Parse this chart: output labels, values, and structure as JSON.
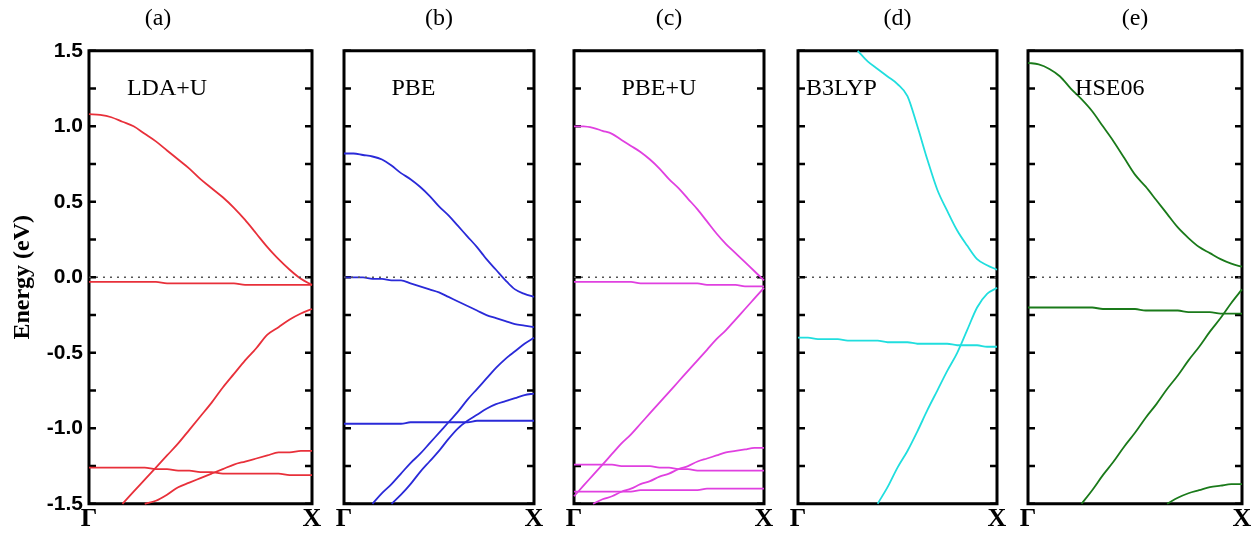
{
  "chart_data": [
    {
      "type": "line",
      "title": "(a)",
      "annotations": [
        "LDA+U"
      ],
      "ylabel": "Energy (eV)",
      "categories": [
        "Γ",
        null,
        null,
        null,
        null,
        null,
        null,
        null,
        null,
        null,
        null,
        null,
        null,
        null,
        null,
        null,
        null,
        null,
        null,
        null,
        "X"
      ],
      "ylim": [
        -1.5,
        1.5
      ],
      "yticks": [
        -1.5,
        {
          "value": -1.25,
          "label": null
        },
        {
          "value": -1,
          "label": "-1.0"
        },
        {
          "value": -0.75,
          "label": null
        },
        -0.5,
        {
          "value": -0.25,
          "label": null
        },
        {
          "value": 0,
          "label": "0.0"
        },
        {
          "value": 0.25,
          "label": null
        },
        0.5,
        {
          "value": 0.75,
          "label": null
        },
        {
          "value": 1,
          "label": "1.0"
        },
        {
          "value": 1.25,
          "label": null
        },
        1.5
      ],
      "ref_lines": [
        {
          "axis": "y",
          "value": 0,
          "color": "#555555",
          "line_style": "dotted"
        }
      ],
      "series": [
        {
          "color": "#e8303a",
          "values": [
            1.08,
            1.075,
            1.06,
            1.03,
            1.0,
            0.95,
            0.9,
            0.84,
            0.78,
            0.72,
            0.65,
            0.59,
            0.53,
            0.46,
            0.38,
            0.29,
            0.2,
            0.12,
            0.05,
            -0.01,
            -0.05
          ]
        },
        {
          "color": "#e8303a",
          "values": [
            -0.03,
            -0.03,
            -0.03,
            -0.03,
            -0.03,
            -0.03,
            -0.03,
            -0.04,
            -0.04,
            -0.04,
            -0.04,
            -0.04,
            -0.04,
            -0.04,
            -0.05,
            -0.05,
            -0.05,
            -0.05,
            -0.05,
            -0.05,
            -0.05
          ]
        },
        {
          "color": "#e8303a",
          "values": [
            null,
            null,
            null,
            -1.5,
            -1.42,
            -1.34,
            -1.26,
            -1.18,
            -1.1,
            -1.01,
            -0.92,
            -0.83,
            -0.73,
            -0.64,
            -0.55,
            -0.47,
            -0.38,
            -0.33,
            -0.28,
            -0.24,
            -0.21
          ]
        },
        {
          "color": "#e8303a",
          "values": [
            null,
            null,
            null,
            null,
            null,
            -1.5,
            -1.48,
            -1.44,
            -1.39,
            -1.36,
            -1.33,
            -1.3,
            -1.27,
            -1.24,
            -1.22,
            -1.2,
            -1.18,
            -1.16,
            -1.16,
            -1.15,
            -1.15
          ]
        },
        {
          "color": "#e8303a",
          "values": [
            -1.26,
            -1.26,
            -1.26,
            -1.26,
            -1.26,
            -1.26,
            -1.27,
            -1.27,
            -1.28,
            -1.28,
            -1.29,
            -1.29,
            -1.3,
            -1.3,
            -1.3,
            -1.3,
            -1.3,
            -1.3,
            -1.31,
            -1.31,
            -1.31
          ]
        }
      ]
    },
    {
      "type": "line",
      "title": "(b)",
      "annotations": [
        "PBE"
      ],
      "tick_labels": "x",
      "categories": [
        "Γ",
        null,
        null,
        null,
        null,
        null,
        null,
        null,
        null,
        null,
        null,
        null,
        null,
        null,
        null,
        null,
        null,
        null,
        null,
        null,
        "X"
      ],
      "ylim": [
        -1.5,
        1.5
      ],
      "yticks": [
        {
          "value": -1.5,
          "label": null
        },
        {
          "value": -1.25,
          "label": null
        },
        {
          "value": -1,
          "label": null
        },
        {
          "value": -0.75,
          "label": null
        },
        {
          "value": -0.5,
          "label": null
        },
        {
          "value": -0.25,
          "label": null
        },
        {
          "value": 0,
          "label": null
        },
        {
          "value": 0.25,
          "label": null
        },
        {
          "value": 0.5,
          "label": null
        },
        {
          "value": 0.75,
          "label": null
        },
        {
          "value": 1,
          "label": null
        },
        {
          "value": 1.25,
          "label": null
        },
        {
          "value": 1.5,
          "label": null
        }
      ],
      "ref_lines": [
        {
          "axis": "y",
          "value": 0,
          "color": "#555555",
          "line_style": "dotted"
        }
      ],
      "series": [
        {
          "color": "#2a2ad8",
          "values": [
            0.82,
            0.82,
            0.81,
            0.8,
            0.78,
            0.74,
            0.69,
            0.65,
            0.6,
            0.54,
            0.47,
            0.41,
            0.34,
            0.27,
            0.2,
            0.12,
            0.05,
            -0.02,
            -0.08,
            -0.11,
            -0.13
          ]
        },
        {
          "color": "#2a2ad8",
          "values": [
            0,
            0,
            0,
            -0.01,
            -0.01,
            -0.02,
            -0.02,
            -0.04,
            -0.06,
            -0.08,
            -0.1,
            -0.13,
            -0.16,
            -0.19,
            -0.22,
            -0.25,
            -0.27,
            -0.29,
            -0.31,
            -0.32,
            -0.33
          ]
        },
        {
          "color": "#2a2ad8",
          "values": [
            -0.97,
            -0.97,
            -0.97,
            -0.97,
            -0.97,
            -0.97,
            -0.97,
            -0.96,
            -0.96,
            -0.96,
            -0.96,
            -0.96,
            -0.96,
            -0.96,
            -0.95,
            -0.95,
            -0.95,
            -0.95,
            -0.95,
            -0.95,
            -0.95
          ]
        },
        {
          "color": "#2a2ad8",
          "values": [
            null,
            null,
            null,
            -1.5,
            -1.43,
            -1.37,
            -1.3,
            -1.23,
            -1.17,
            -1.1,
            -1.03,
            -0.96,
            -0.89,
            -0.81,
            -0.74,
            -0.67,
            -0.6,
            -0.54,
            -0.49,
            -0.44,
            -0.4
          ]
        },
        {
          "color": "#2a2ad8",
          "values": [
            null,
            null,
            null,
            null,
            null,
            -1.5,
            -1.44,
            -1.37,
            -1.29,
            -1.22,
            -1.15,
            -1.07,
            -1.0,
            -0.95,
            -0.91,
            -0.87,
            -0.84,
            -0.82,
            -0.8,
            -0.78,
            -0.77
          ]
        }
      ]
    },
    {
      "type": "line",
      "title": "(c)",
      "annotations": [
        "PBE+U"
      ],
      "tick_labels": "x",
      "categories": [
        "Γ",
        null,
        null,
        null,
        null,
        null,
        null,
        null,
        null,
        null,
        null,
        null,
        null,
        null,
        null,
        null,
        null,
        null,
        null,
        null,
        "X"
      ],
      "ylim": [
        -1.5,
        1.5
      ],
      "yticks": [
        {
          "value": -1.5,
          "label": null
        },
        {
          "value": -1.25,
          "label": null
        },
        {
          "value": -1,
          "label": null
        },
        {
          "value": -0.75,
          "label": null
        },
        {
          "value": -0.5,
          "label": null
        },
        {
          "value": -0.25,
          "label": null
        },
        {
          "value": 0,
          "label": null
        },
        {
          "value": 0.25,
          "label": null
        },
        {
          "value": 0.5,
          "label": null
        },
        {
          "value": 0.75,
          "label": null
        },
        {
          "value": 1,
          "label": null
        },
        {
          "value": 1.25,
          "label": null
        },
        {
          "value": 1.5,
          "label": null
        }
      ],
      "ref_lines": [
        {
          "axis": "y",
          "value": 0,
          "color": "#555555",
          "line_style": "dotted"
        }
      ],
      "series": [
        {
          "color": "#e040e0",
          "values": [
            1.0,
            1.0,
            0.99,
            0.97,
            0.95,
            0.91,
            0.87,
            0.83,
            0.78,
            0.72,
            0.65,
            0.59,
            0.52,
            0.45,
            0.37,
            0.29,
            0.22,
            0.16,
            0.1,
            0.04,
            -0.02
          ]
        },
        {
          "color": "#e040e0",
          "values": [
            -0.03,
            -0.03,
            -0.03,
            -0.03,
            -0.03,
            -0.03,
            -0.03,
            -0.04,
            -0.04,
            -0.04,
            -0.04,
            -0.04,
            -0.04,
            -0.04,
            -0.05,
            -0.05,
            -0.05,
            -0.05,
            -0.06,
            -0.06,
            -0.06
          ]
        },
        {
          "color": "#e040e0",
          "values": [
            -1.45,
            -1.38,
            -1.31,
            -1.24,
            -1.17,
            -1.1,
            -1.04,
            -0.97,
            -0.9,
            -0.83,
            -0.76,
            -0.69,
            -0.62,
            -0.55,
            -0.48,
            -0.41,
            -0.35,
            -0.28,
            -0.21,
            -0.14,
            -0.07
          ]
        },
        {
          "color": "#e040e0",
          "values": [
            -1.24,
            -1.24,
            -1.24,
            -1.24,
            -1.24,
            -1.25,
            -1.25,
            -1.25,
            -1.25,
            -1.26,
            -1.26,
            -1.27,
            -1.27,
            -1.28,
            -1.28,
            -1.28,
            -1.28,
            -1.28,
            -1.28,
            -1.28,
            -1.28
          ]
        },
        {
          "color": "#e040e0",
          "values": [
            null,
            null,
            -1.5,
            -1.47,
            -1.45,
            -1.42,
            -1.4,
            -1.37,
            -1.35,
            -1.32,
            -1.3,
            -1.27,
            -1.25,
            -1.22,
            -1.2,
            -1.18,
            -1.16,
            -1.15,
            -1.14,
            -1.13,
            -1.13
          ]
        },
        {
          "color": "#e040e0",
          "values": [
            -1.42,
            -1.42,
            -1.42,
            -1.42,
            -1.42,
            -1.42,
            -1.42,
            -1.41,
            -1.41,
            -1.41,
            -1.41,
            -1.41,
            -1.41,
            -1.41,
            -1.4,
            -1.4,
            -1.4,
            -1.4,
            -1.4,
            -1.4,
            -1.4
          ]
        }
      ]
    },
    {
      "type": "line",
      "title": "(d)",
      "annotations": [
        "B3LYP"
      ],
      "tick_labels": "x",
      "categories": [
        "Γ",
        null,
        null,
        null,
        null,
        null,
        null,
        null,
        null,
        null,
        null,
        null,
        null,
        null,
        null,
        null,
        null,
        null,
        null,
        null,
        "X"
      ],
      "ylim": [
        -1.5,
        1.5
      ],
      "yticks": [
        {
          "value": -1.5,
          "label": null
        },
        {
          "value": -1.25,
          "label": null
        },
        {
          "value": -1,
          "label": null
        },
        {
          "value": -0.75,
          "label": null
        },
        {
          "value": -0.5,
          "label": null
        },
        {
          "value": -0.25,
          "label": null
        },
        {
          "value": 0,
          "label": null
        },
        {
          "value": 0.25,
          "label": null
        },
        {
          "value": 0.5,
          "label": null
        },
        {
          "value": 0.75,
          "label": null
        },
        {
          "value": 1,
          "label": null
        },
        {
          "value": 1.25,
          "label": null
        },
        {
          "value": 1.5,
          "label": null
        }
      ],
      "ref_lines": [
        {
          "axis": "y",
          "value": 0,
          "color": "#555555",
          "line_style": "dotted"
        }
      ],
      "series": [
        {
          "color": "#20dede",
          "values": [
            null,
            null,
            null,
            null,
            null,
            null,
            1.5,
            1.43,
            1.38,
            1.33,
            1.28,
            1.2,
            1.0,
            0.78,
            0.58,
            0.44,
            0.31,
            0.21,
            0.12,
            0.08,
            0.05
          ]
        },
        {
          "color": "#20dede",
          "values": [
            -0.4,
            -0.4,
            -0.41,
            -0.41,
            -0.41,
            -0.42,
            -0.42,
            -0.42,
            -0.42,
            -0.43,
            -0.43,
            -0.43,
            -0.44,
            -0.44,
            -0.44,
            -0.44,
            -0.45,
            -0.45,
            -0.45,
            -0.46,
            -0.46
          ]
        },
        {
          "color": "#20dede",
          "values": [
            null,
            null,
            null,
            null,
            null,
            null,
            null,
            null,
            -1.5,
            -1.39,
            -1.26,
            -1.15,
            -1.02,
            -0.88,
            -0.75,
            -0.62,
            -0.5,
            -0.35,
            -0.2,
            -0.11,
            -0.07
          ]
        }
      ]
    },
    {
      "type": "line",
      "title": "(e)",
      "annotations": [
        "HSE06"
      ],
      "tick_labels": "x",
      "categories": [
        "Γ",
        null,
        null,
        null,
        null,
        null,
        null,
        null,
        null,
        null,
        null,
        null,
        null,
        null,
        null,
        null,
        null,
        null,
        null,
        null,
        "X"
      ],
      "ylim": [
        -1.5,
        1.5
      ],
      "yticks": [
        {
          "value": -1.5,
          "label": null
        },
        {
          "value": -1.25,
          "label": null
        },
        {
          "value": -1,
          "label": null
        },
        {
          "value": -0.75,
          "label": null
        },
        {
          "value": -0.5,
          "label": null
        },
        {
          "value": -0.25,
          "label": null
        },
        {
          "value": 0,
          "label": null
        },
        {
          "value": 0.25,
          "label": null
        },
        {
          "value": 0.5,
          "label": null
        },
        {
          "value": 0.75,
          "label": null
        },
        {
          "value": 1,
          "label": null
        },
        {
          "value": 1.25,
          "label": null
        },
        {
          "value": 1.5,
          "label": null
        }
      ],
      "ref_lines": [
        {
          "axis": "y",
          "value": 0,
          "color": "#555555",
          "line_style": "dotted"
        }
      ],
      "series": [
        {
          "color": "#1a7a1a",
          "values": [
            1.42,
            1.41,
            1.38,
            1.33,
            1.25,
            1.18,
            1.1,
            1.0,
            0.9,
            0.79,
            0.68,
            0.6,
            0.51,
            0.42,
            0.33,
            0.26,
            0.2,
            0.16,
            0.12,
            0.09,
            0.07
          ]
        },
        {
          "color": "#1a7a1a",
          "values": [
            -0.2,
            -0.2,
            -0.2,
            -0.2,
            -0.2,
            -0.2,
            -0.2,
            -0.21,
            -0.21,
            -0.21,
            -0.21,
            -0.22,
            -0.22,
            -0.22,
            -0.22,
            -0.23,
            -0.23,
            -0.23,
            -0.24,
            -0.24,
            -0.24
          ]
        },
        {
          "color": "#1a7a1a",
          "values": [
            null,
            null,
            null,
            null,
            null,
            -1.5,
            -1.41,
            -1.31,
            -1.22,
            -1.12,
            -1.03,
            -0.93,
            -0.84,
            -0.74,
            -0.65,
            -0.55,
            -0.46,
            -0.36,
            -0.27,
            -0.17,
            -0.08
          ]
        },
        {
          "color": "#1a7a1a",
          "values": [
            null,
            null,
            null,
            null,
            null,
            null,
            null,
            null,
            null,
            null,
            null,
            null,
            null,
            -1.5,
            -1.46,
            -1.43,
            -1.41,
            -1.39,
            -1.38,
            -1.37,
            -1.37
          ]
        }
      ]
    }
  ]
}
